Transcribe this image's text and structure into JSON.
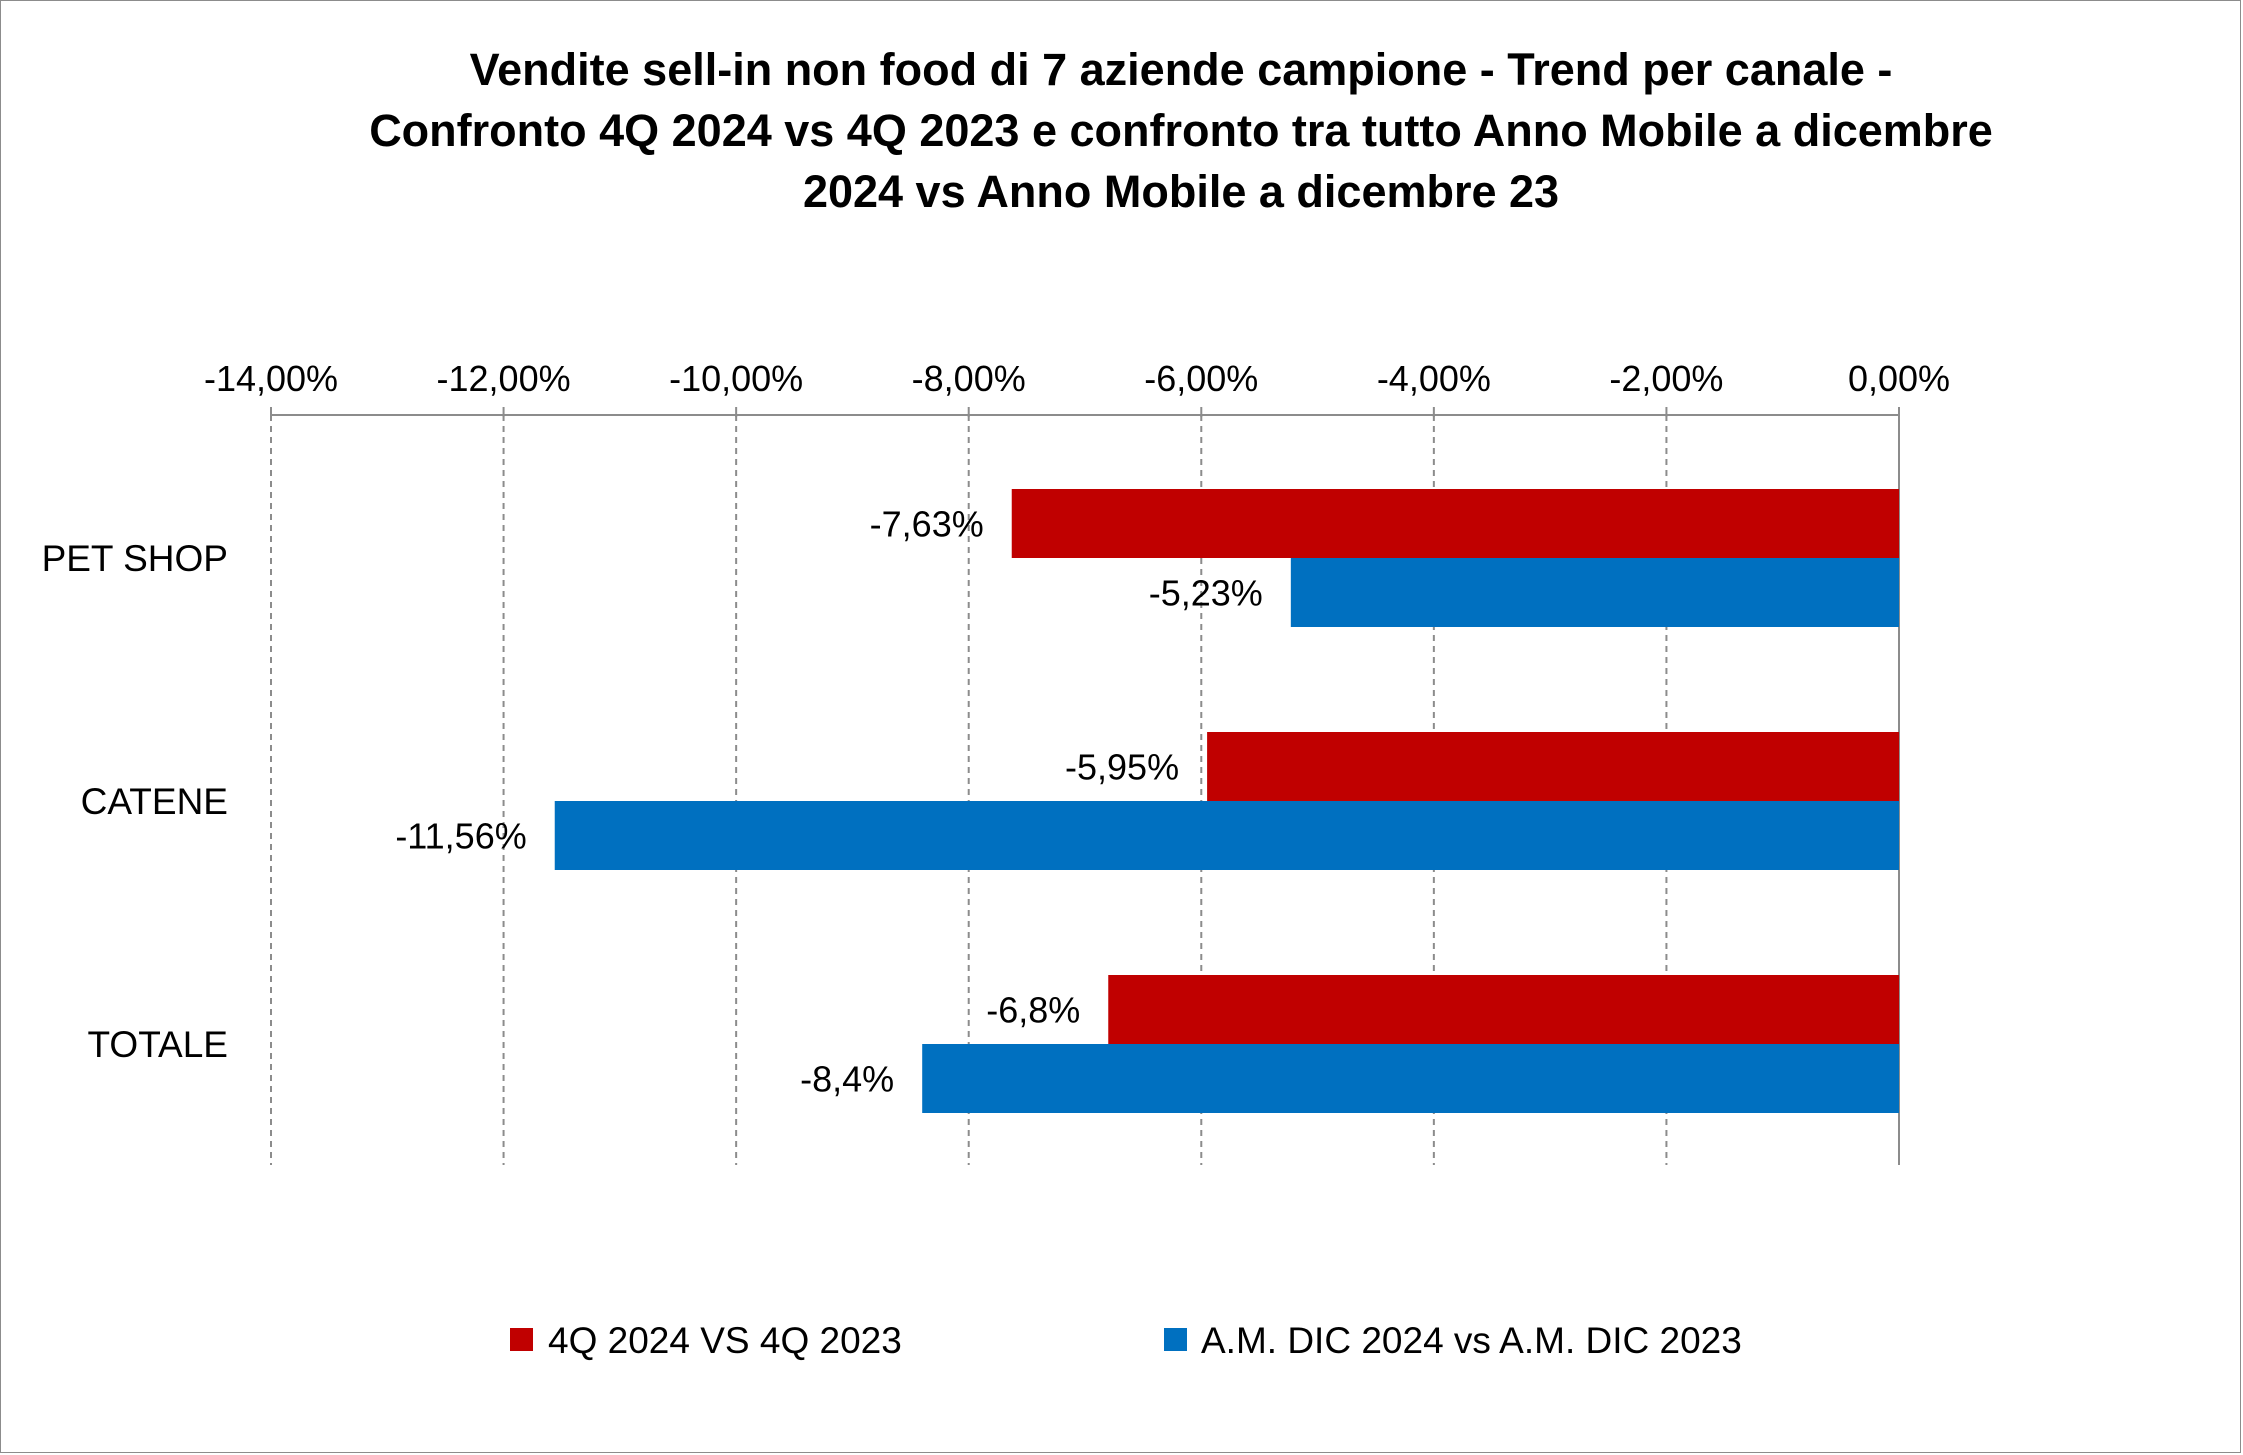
{
  "chart_data": {
    "type": "bar",
    "orientation": "horizontal",
    "title": [
      "Vendite sell-in non food di 7 aziende campione - Trend per canale -",
      "Confronto 4Q 2024 vs 4Q 2023 e confronto tra tutto Anno Mobile a dicembre",
      "2024 vs Anno Mobile a dicembre 23"
    ],
    "categories": [
      "PET SHOP",
      "CATENE",
      "TOTALE"
    ],
    "series": [
      {
        "name": "4Q 2024 VS 4Q 2023",
        "color": "#C00000",
        "values": [
          -7.63,
          -5.95,
          -6.8
        ],
        "labels": [
          "-7,63%",
          "-5,95%",
          "-6,8%"
        ]
      },
      {
        "name": "A.M. DIC 2024 vs A.M. DIC 2023",
        "color": "#0070C0",
        "values": [
          -5.23,
          -11.56,
          -8.4
        ],
        "labels": [
          "-5,23%",
          "-11,56%",
          "-8,4%"
        ]
      }
    ],
    "xlim": [
      -14,
      0
    ],
    "xticks": [
      -14,
      -12,
      -10,
      -8,
      -6,
      -4,
      -2,
      0
    ],
    "xtick_labels": [
      "-14,00%",
      "-12,00%",
      "-10,00%",
      "-8,00%",
      "-6,00%",
      "-4,00%",
      "-2,00%",
      "0,00%"
    ],
    "x_axis_position": "top",
    "grid": "vertical dashed",
    "legend_position": "bottom"
  }
}
